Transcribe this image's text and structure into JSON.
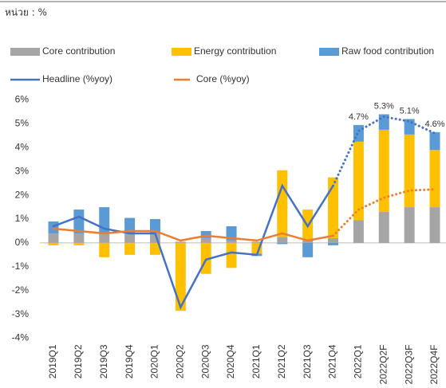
{
  "unit_label": "หน่วย : %",
  "chart_data": {
    "type": "bar",
    "categories": [
      "2019Q1",
      "2019Q2",
      "2019Q3",
      "2019Q4",
      "2020Q1",
      "2020Q2",
      "2020Q3",
      "2020Q4",
      "2021Q1",
      "2021Q2",
      "2021Q3",
      "2021Q4",
      "2022Q1",
      "2022Q2F",
      "2022Q3F",
      "2022Q4F"
    ],
    "series": [
      {
        "name": "Core contribution",
        "type": "bar",
        "color": "#a5a5a5",
        "values": [
          0.4,
          0.4,
          0.4,
          0.4,
          0.4,
          0.05,
          0.2,
          0.1,
          0.05,
          0.25,
          0.1,
          0.2,
          0.95,
          1.3,
          1.5,
          1.5
        ]
      },
      {
        "name": "Energy contribution",
        "type": "bar",
        "color": "#ffc000",
        "values": [
          -0.1,
          -0.1,
          -0.6,
          -0.5,
          -0.5,
          -2.85,
          -1.3,
          -1.05,
          -0.45,
          2.8,
          1.3,
          2.55,
          3.3,
          3.45,
          3.05,
          2.4
        ]
      },
      {
        "name": "Raw food contribution",
        "type": "bar",
        "color": "#5b9bd5",
        "values": [
          0.5,
          1.0,
          1.1,
          0.65,
          0.6,
          0,
          0.3,
          0.6,
          -0.1,
          -0.05,
          -0.6,
          -0.1,
          0.7,
          0.65,
          0.65,
          0.75
        ]
      },
      {
        "name": "Headline  (%yoy)",
        "type": "line",
        "color": "#4472c4",
        "dotted_from": 11,
        "values": [
          0.7,
          1.1,
          0.6,
          0.4,
          0.4,
          -2.7,
          -0.7,
          -0.4,
          -0.5,
          2.4,
          0.7,
          2.4,
          4.7,
          5.3,
          5.1,
          4.6
        ],
        "value_labels": [
          null,
          null,
          null,
          null,
          null,
          null,
          null,
          null,
          null,
          null,
          null,
          null,
          "4.7%",
          "5.3%",
          "5.1%",
          "4.6%"
        ]
      },
      {
        "name": "Core (%yoy)",
        "type": "line",
        "color": "#ed7d31",
        "dotted_from": 11,
        "values": [
          0.6,
          0.5,
          0.4,
          0.5,
          0.5,
          0.1,
          0.3,
          0.2,
          0.1,
          0.4,
          0.1,
          0.3,
          1.4,
          1.9,
          2.2,
          2.25
        ]
      }
    ],
    "ylim": [
      -4,
      6
    ],
    "yticks": [
      {
        "value": -4,
        "label": "-4%"
      },
      {
        "value": -3,
        "label": "-3%"
      },
      {
        "value": -2,
        "label": "-2%"
      },
      {
        "value": -1,
        "label": "-1%"
      },
      {
        "value": 0,
        "label": "0%"
      },
      {
        "value": 1,
        "label": "1%"
      },
      {
        "value": 2,
        "label": "2%"
      },
      {
        "value": 3,
        "label": "3%"
      },
      {
        "value": 4,
        "label": "4%"
      },
      {
        "value": 5,
        "label": "5%"
      },
      {
        "value": 6,
        "label": "6%"
      }
    ],
    "grid": false
  }
}
